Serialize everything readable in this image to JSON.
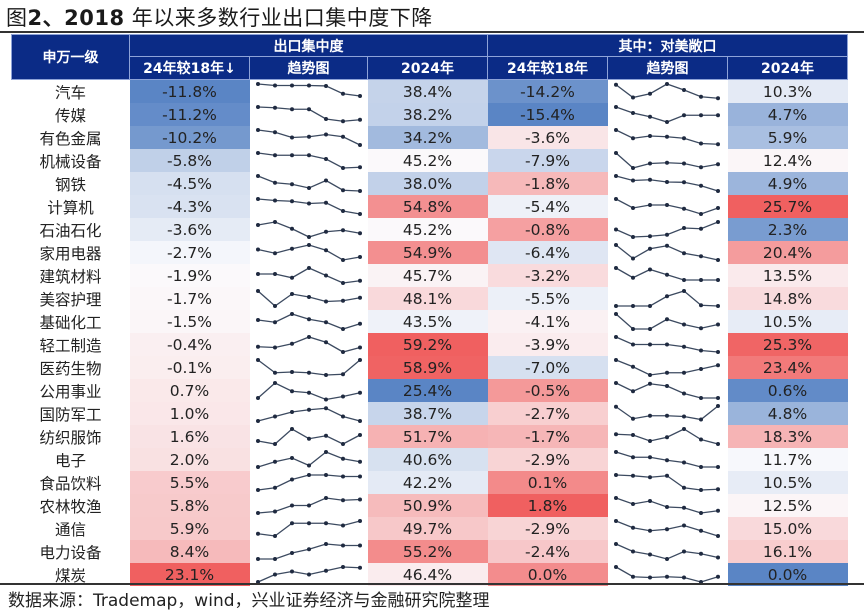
{
  "title_prefix": "图",
  "title_number": "2、2018",
  "title_rest": " 年以来多数行业出口集中度下降",
  "source": "数据来源：Trademap，wind，兴业证券经济与金融研究院整理",
  "header": {
    "industry": "申万一级",
    "group1": "出口集中度",
    "group2": "其中：对美敞口",
    "diff1": "24年较18年↓",
    "trend1": "趋势图",
    "val1": "2024年",
    "diff2": "24年较18年",
    "trend2": "趋势图",
    "val2": "2024年"
  },
  "colors": {
    "header_bg": "#0b2b86",
    "neg_strong": "#5b86c4",
    "pos_strong": "#ef5d5d",
    "line": "#3c4a60"
  },
  "chart_data": {
    "type": "table",
    "title": "图2、2018 年以来多数行业出口集中度下降",
    "columns": [
      "申万一级",
      "出口集中度 24年较18年",
      "出口集中度 趋势图",
      "出口集中度 2024年",
      "对美敞口 24年较18年",
      "对美敞口 趋势图",
      "对美敞口 2024年"
    ],
    "sparkline_note": "trend series are relative shapes 2018-2024 (7 points, normalized 0-1)",
    "rows": [
      {
        "name": "汽车",
        "d1": "-11.8%",
        "d1v": -11.8,
        "v1": "38.4%",
        "v1v": 38.4,
        "d2": "-14.2%",
        "d2v": -14.2,
        "v2": "10.3%",
        "v2v": 10.3,
        "t1": [
          1.0,
          0.9,
          0.9,
          0.9,
          0.87,
          0.35,
          0.2
        ],
        "t2": [
          0.95,
          0.1,
          0.35,
          1.0,
          0.6,
          0.15,
          0.05
        ]
      },
      {
        "name": "传媒",
        "d1": "-11.2%",
        "d1v": -11.2,
        "v1": "38.2%",
        "v1v": 38.2,
        "d2": "-15.4%",
        "d2v": -15.4,
        "v2": "4.7%",
        "v2v": 4.7,
        "t1": [
          1.0,
          0.95,
          0.85,
          0.85,
          0.2,
          0.05,
          0.15
        ],
        "t2": [
          1.0,
          0.6,
          0.35,
          0.0,
          0.45,
          0.45,
          0.45
        ]
      },
      {
        "name": "有色金属",
        "d1": "-10.2%",
        "d1v": -10.2,
        "v1": "34.2%",
        "v1v": 34.2,
        "d2": "-3.6%",
        "d2v": -3.6,
        "v2": "5.9%",
        "v2v": 5.9,
        "t1": [
          1.0,
          0.85,
          0.5,
          0.55,
          0.7,
          0.55,
          0.0
        ],
        "t2": [
          1.0,
          0.45,
          0.6,
          0.55,
          0.45,
          0.1,
          0.05
        ]
      },
      {
        "name": "机械设备",
        "d1": "-5.8%",
        "d1v": -5.8,
        "v1": "45.2%",
        "v1v": 45.2,
        "d2": "-7.9%",
        "d2v": -7.9,
        "v2": "12.4%",
        "v2v": 12.4,
        "t1": [
          1.0,
          0.85,
          0.85,
          0.85,
          0.6,
          0.0,
          0.05
        ],
        "t2": [
          1.0,
          0.0,
          0.3,
          0.35,
          0.3,
          0.05,
          0.25
        ]
      },
      {
        "name": "钢铁",
        "d1": "-4.5%",
        "d1v": -4.5,
        "v1": "38.0%",
        "v1v": 38.0,
        "d2": "-1.8%",
        "d2v": -1.8,
        "v2": "4.9%",
        "v2v": 4.9,
        "t1": [
          1.0,
          0.55,
          0.45,
          0.2,
          0.7,
          0.05,
          0.0
        ],
        "t2": [
          1.0,
          0.7,
          0.75,
          0.6,
          0.58,
          0.35,
          0.0
        ]
      },
      {
        "name": "计算机",
        "d1": "-4.3%",
        "d1v": -4.3,
        "v1": "54.8%",
        "v1v": 54.8,
        "d2": "-5.4%",
        "d2v": -5.4,
        "v2": "25.7%",
        "v2v": 25.7,
        "t1": [
          1.0,
          0.9,
          0.85,
          0.7,
          0.75,
          0.2,
          0.0
        ],
        "t2": [
          1.0,
          0.4,
          0.6,
          0.6,
          0.35,
          0.0,
          0.4
        ]
      },
      {
        "name": "石油石化",
        "d1": "-3.6%",
        "d1v": -3.6,
        "v1": "45.2%",
        "v1v": 45.2,
        "d2": "-0.8%",
        "d2v": -0.8,
        "v2": "2.3%",
        "v2v": 2.3,
        "t1": [
          0.8,
          1.0,
          0.55,
          0.0,
          0.35,
          0.45,
          0.25
        ],
        "t2": [
          0.5,
          0.0,
          0.05,
          0.15,
          0.6,
          0.55,
          1.0
        ]
      },
      {
        "name": "家用电器",
        "d1": "-2.7%",
        "d1v": -2.7,
        "v1": "54.9%",
        "v1v": 54.9,
        "d2": "-6.4%",
        "d2v": -6.4,
        "v2": "20.4%",
        "v2v": 20.4,
        "t1": [
          0.7,
          0.45,
          0.75,
          1.0,
          0.65,
          0.0,
          0.2
        ],
        "t2": [
          1.0,
          0.1,
          0.75,
          0.95,
          0.45,
          0.25,
          0.0
        ]
      },
      {
        "name": "建筑材料",
        "d1": "-1.9%",
        "d1v": -1.9,
        "v1": "45.7%",
        "v1v": 45.7,
        "d2": "-3.2%",
        "d2v": -3.2,
        "v2": "13.5%",
        "v2v": 13.5,
        "t1": [
          0.6,
          0.6,
          0.35,
          1.0,
          0.5,
          0.0,
          0.15
        ],
        "t2": [
          1.0,
          0.35,
          0.9,
          0.55,
          0.2,
          0.2,
          0.2
        ]
      },
      {
        "name": "美容护理",
        "d1": "-1.7%",
        "d1v": -1.7,
        "v1": "48.1%",
        "v1v": 48.1,
        "d2": "-5.5%",
        "d2v": -5.5,
        "v2": "14.8%",
        "v2v": 14.8,
        "t1": [
          1.0,
          0.0,
          0.8,
          0.6,
          0.3,
          0.35,
          0.55
        ],
        "t2": [
          0.0,
          0.0,
          0.0,
          0.65,
          1.0,
          0.05,
          0.0
        ]
      },
      {
        "name": "基础化工",
        "d1": "-1.5%",
        "d1v": -1.5,
        "v1": "43.5%",
        "v1v": 43.5,
        "d2": "-4.1%",
        "d2v": -4.1,
        "v2": "10.5%",
        "v2v": 10.5,
        "t1": [
          0.6,
          0.45,
          1.0,
          0.65,
          0.45,
          0.0,
          0.35
        ],
        "t2": [
          1.0,
          0.0,
          0.0,
          0.65,
          0.3,
          0.05,
          0.3
        ]
      },
      {
        "name": "轻工制造",
        "d1": "-0.4%",
        "d1v": -0.4,
        "v1": "59.2%",
        "v1v": 59.2,
        "d2": "-3.9%",
        "d2v": -3.9,
        "v2": "25.3%",
        "v2v": 25.3,
        "t1": [
          0.35,
          0.3,
          0.55,
          1.0,
          0.65,
          0.0,
          0.3
        ],
        "t2": [
          1.0,
          0.5,
          0.5,
          0.5,
          0.35,
          0.1,
          0.0
        ]
      },
      {
        "name": "医药生物",
        "d1": "-0.1%",
        "d1v": -0.1,
        "v1": "58.9%",
        "v1v": 58.9,
        "d2": "-7.0%",
        "d2v": -7.0,
        "v2": "23.4%",
        "v2v": 23.4,
        "t1": [
          1.0,
          0.15,
          0.2,
          0.15,
          0.0,
          0.05,
          1.0
        ],
        "t2": [
          1.0,
          0.55,
          0.0,
          0.15,
          0.15,
          0.4,
          0.65
        ]
      },
      {
        "name": "公用事业",
        "d1": "0.7%",
        "d1v": 0.7,
        "v1": "25.4%",
        "v1v": 25.4,
        "d2": "-0.5%",
        "d2v": -0.5,
        "v2": "0.6%",
        "v2v": 0.6,
        "t1": [
          0.0,
          1.0,
          0.45,
          0.35,
          -0.1,
          0.1,
          0.35
        ],
        "t2": [
          1.0,
          0.45,
          0.95,
          0.8,
          0.3,
          0.0,
          0.0
        ]
      },
      {
        "name": "国防军工",
        "d1": "1.0%",
        "d1v": 1.0,
        "v1": "38.7%",
        "v1v": 38.7,
        "d2": "-2.7%",
        "d2v": -2.7,
        "v2": "4.8%",
        "v2v": 4.8,
        "t1": [
          0.0,
          0.3,
          0.6,
          0.75,
          0.85,
          0.3,
          0.0
        ],
        "t2": [
          0.95,
          0.15,
          0.35,
          0.35,
          0.3,
          0.1,
          1.0
        ]
      },
      {
        "name": "纺织服饰",
        "d1": "1.6%",
        "d1v": 1.6,
        "v1": "51.7%",
        "v1v": 51.7,
        "d2": "-1.7%",
        "d2v": -1.7,
        "v2": "18.3%",
        "v2v": 18.3,
        "t1": [
          0.2,
          0.0,
          1.0,
          0.35,
          0.55,
          0.0,
          0.6
        ],
        "t2": [
          0.65,
          0.6,
          0.2,
          0.45,
          1.0,
          0.3,
          0.0
        ]
      },
      {
        "name": "电子",
        "d1": "2.0%",
        "d1v": 2.0,
        "v1": "40.6%",
        "v1v": 40.6,
        "d2": "-2.9%",
        "d2v": -2.9,
        "v2": "11.7%",
        "v2v": 11.7,
        "t1": [
          0.0,
          0.35,
          0.6,
          0.1,
          1.0,
          0.55,
          0.35
        ],
        "t2": [
          1.0,
          0.65,
          0.65,
          0.45,
          0.3,
          0.0,
          0.0
        ]
      },
      {
        "name": "食品饮料",
        "d1": "5.5%",
        "d1v": 5.5,
        "v1": "42.2%",
        "v1v": 42.2,
        "d2": "0.1%",
        "d2v": 0.1,
        "v2": "10.5%",
        "v2v": 10.5,
        "t1": [
          0.0,
          0.15,
          0.7,
          1.0,
          1.0,
          0.9,
          0.9
        ],
        "t2": [
          1.0,
          0.95,
          0.85,
          0.95,
          0.15,
          0.0,
          0.05
        ]
      },
      {
        "name": "农林牧渔",
        "d1": "5.8%",
        "d1v": 5.8,
        "v1": "50.9%",
        "v1v": 50.9,
        "d2": "1.8%",
        "d2v": 1.8,
        "v2": "12.5%",
        "v2v": 12.5,
        "t1": [
          0.0,
          0.1,
          0.5,
          0.5,
          1.0,
          0.85,
          0.9
        ],
        "t2": [
          1.0,
          0.6,
          0.8,
          0.4,
          0.35,
          0.0,
          0.15
        ]
      },
      {
        "name": "通信",
        "d1": "5.9%",
        "d1v": 5.9,
        "v1": "49.7%",
        "v1v": 49.7,
        "d2": "-2.9%",
        "d2v": -2.9,
        "v2": "15.0%",
        "v2v": 15.0,
        "t1": [
          0.15,
          0.0,
          0.85,
          0.85,
          0.85,
          0.7,
          1.0
        ],
        "t2": [
          1.0,
          0.55,
          0.35,
          0.45,
          0.7,
          0.35,
          0.0
        ]
      },
      {
        "name": "电力设备",
        "d1": "8.4%",
        "d1v": 8.4,
        "v1": "55.2%",
        "v1v": 55.2,
        "d2": "-2.4%",
        "d2v": -2.4,
        "v2": "16.1%",
        "v2v": 16.1,
        "t1": [
          0.0,
          0.0,
          0.4,
          0.65,
          1.0,
          0.9,
          0.9
        ],
        "t2": [
          1.0,
          0.5,
          0.3,
          0.0,
          0.5,
          0.35,
          0.1
        ]
      },
      {
        "name": "煤炭",
        "d1": "23.1%",
        "d1v": 23.1,
        "v1": "46.4%",
        "v1v": 46.4,
        "d2": "0.0%",
        "d2v": 0.0,
        "v2": "0.0%",
        "v2v": 0.0,
        "t1": [
          0.0,
          0.5,
          0.7,
          0.5,
          0.75,
          1.0,
          0.95
        ],
        "t2": [
          1.0,
          0.35,
          0.3,
          0.35,
          0.3,
          0.0,
          0.35
        ]
      }
    ]
  }
}
